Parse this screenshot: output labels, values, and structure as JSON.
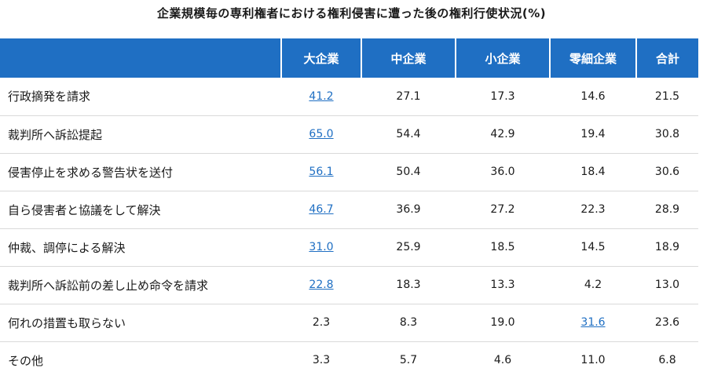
{
  "chart_data": {
    "type": "table",
    "title": "企業規模毎の専利権者における権利侵害に遭った後の権利行使状況(%)",
    "columns": [
      "大企業",
      "中企業",
      "小企業",
      "零細企業",
      "合計"
    ],
    "rows": [
      {
        "label": "行政摘発を請求",
        "values": [
          "41.2",
          "27.1",
          "17.3",
          "14.6",
          "21.5"
        ],
        "highlight": 0
      },
      {
        "label": "裁判所へ訴訟提起",
        "values": [
          "65.0",
          "54.4",
          "42.9",
          "19.4",
          "30.8"
        ],
        "highlight": 0
      },
      {
        "label": "侵害停止を求める警告状を送付",
        "values": [
          "56.1",
          "50.4",
          "36.0",
          "18.4",
          "30.6"
        ],
        "highlight": 0
      },
      {
        "label": "自ら侵害者と協議をして解決",
        "values": [
          "46.7",
          "36.9",
          "27.2",
          "22.3",
          "28.9"
        ],
        "highlight": 0
      },
      {
        "label": "仲裁、調停による解決",
        "values": [
          "31.0",
          "25.9",
          "18.5",
          "14.5",
          "18.9"
        ],
        "highlight": 0
      },
      {
        "label": "裁判所へ訴訟前の差し止め命令を請求",
        "values": [
          "22.8",
          "18.3",
          "13.3",
          "4.2",
          "13.0"
        ],
        "highlight": 0
      },
      {
        "label": "何れの措置も取らない",
        "values": [
          "2.3",
          "8.3",
          "19.0",
          "31.6",
          "23.6"
        ],
        "highlight": 3
      },
      {
        "label": "その他",
        "values": [
          "3.3",
          "5.7",
          "4.6",
          "11.0",
          "6.8"
        ],
        "highlight": -1
      }
    ]
  },
  "colors": {
    "header_bg": "#1f6fc3",
    "highlight": "#1f6fc3",
    "row_divider": "#d9d9d9"
  }
}
